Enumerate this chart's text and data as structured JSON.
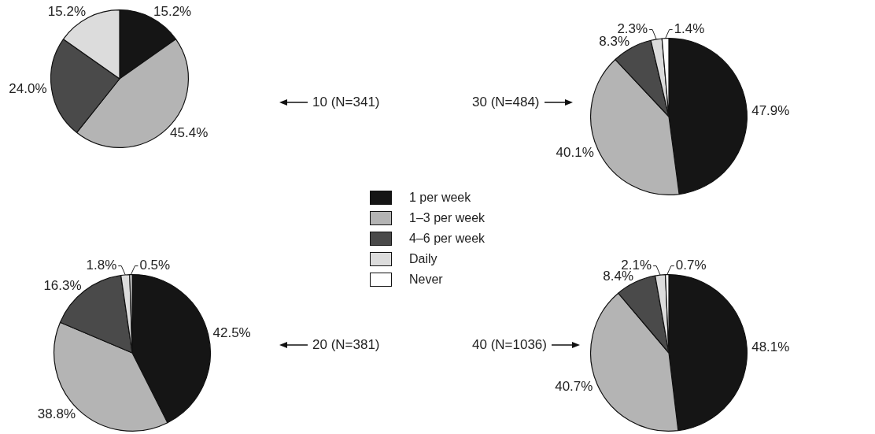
{
  "chart_data": [
    {
      "type": "pie",
      "title": "10 (N=341)",
      "categories": [
        "1 per week",
        "1–3 per week",
        "4–6 per week",
        "Daily",
        "Never"
      ],
      "values": [
        15.2,
        45.4,
        24.0,
        15.2,
        null
      ],
      "value_labels": [
        "15.2%",
        "45.4%",
        "24.0%",
        "15.2%",
        null
      ],
      "colors": [
        "#151515",
        "#b4b4b4",
        "#4a4a4a",
        "#dcdcdc",
        "#ffffff"
      ],
      "legend": "right"
    },
    {
      "type": "pie",
      "title": "30 (N=484)",
      "categories": [
        null,
        null,
        null,
        null,
        null
      ],
      "values": [
        47.9,
        40.1,
        8.3,
        2.3,
        1.4
      ],
      "value_labels": [
        "47.9%",
        "40.1%",
        "8.3%",
        "2.3%",
        "1.4%"
      ],
      "colors": [
        "#151515",
        "#b4b4b4",
        "#4a4a4a",
        "#dcdcdc",
        "#ffffff"
      ]
    },
    {
      "type": "pie",
      "title": "20 (N=381)",
      "categories": [
        null,
        null,
        null,
        null,
        null
      ],
      "values": [
        42.5,
        38.8,
        16.3,
        1.8,
        0.5
      ],
      "value_labels": [
        "42.5%",
        "38.8%",
        "16.3%",
        "1.8%",
        "0.5%"
      ],
      "colors": [
        "#151515",
        "#b4b4b4",
        "#4a4a4a",
        "#dcdcdc",
        "#ffffff"
      ]
    },
    {
      "type": "pie",
      "title": "40 (N=1036)",
      "categories": [
        null,
        null,
        null,
        null,
        null
      ],
      "values": [
        48.1,
        40.7,
        8.4,
        2.1,
        0.7
      ],
      "value_labels": [
        "48.1%",
        "40.7%",
        "8.4%",
        "2.1%",
        "0.7%"
      ],
      "colors": [
        "#151515",
        "#b4b4b4",
        "#4a4a4a",
        "#dcdcdc",
        "#ffffff"
      ]
    }
  ]
}
